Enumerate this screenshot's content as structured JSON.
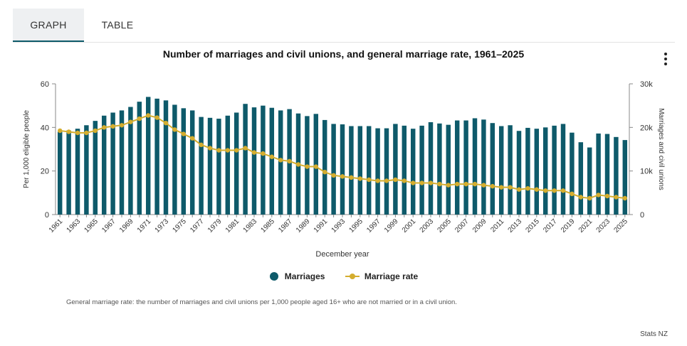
{
  "tabs": [
    {
      "label": "GRAPH",
      "active": true
    },
    {
      "label": "TABLE",
      "active": false
    }
  ],
  "colors": {
    "bar": "#0e5a6a",
    "line": "#d4ad2f",
    "axis": "#888888",
    "grid": "#cccccc"
  },
  "chart_data": {
    "type": "bar",
    "title": "Number of marriages and civil unions, and general marriage rate, 1961–2025",
    "xlabel": "December year",
    "ylabel_left": "Per 1,000 eligible people",
    "ylabel_right": "Marriages and civil unions",
    "ylim_left": [
      0,
      60
    ],
    "ylim_right": [
      0,
      30000
    ],
    "yticks_left": [
      "0",
      "20",
      "40",
      "60"
    ],
    "yticks_right": [
      "0",
      "10k",
      "20k",
      "30k"
    ],
    "xtick_labels": [
      "1961",
      "1963",
      "1965",
      "1967",
      "1969",
      "1971",
      "1973",
      "1975",
      "1977",
      "1979",
      "1981",
      "1983",
      "1985",
      "1987",
      "1989",
      "1991",
      "1993",
      "1995",
      "1997",
      "1999",
      "2001",
      "2003",
      "2005",
      "2007",
      "2009",
      "2011",
      "2013",
      "2015",
      "2017",
      "2019",
      "2021",
      "2023",
      "2025"
    ],
    "grid": false,
    "legend_position": "bottom",
    "categories": [
      1961,
      1962,
      1963,
      1964,
      1965,
      1966,
      1967,
      1968,
      1969,
      1970,
      1971,
      1972,
      1973,
      1974,
      1975,
      1976,
      1977,
      1978,
      1979,
      1980,
      1981,
      1982,
      1983,
      1984,
      1985,
      1986,
      1987,
      1988,
      1989,
      1990,
      1991,
      1992,
      1993,
      1994,
      1995,
      1996,
      1997,
      1998,
      1999,
      2000,
      2001,
      2002,
      2003,
      2004,
      2005,
      2006,
      2007,
      2008,
      2009,
      2010,
      2011,
      2012,
      2013,
      2014,
      2015,
      2016,
      2017,
      2018,
      2019,
      2020,
      2021,
      2022,
      2023,
      2024,
      2025
    ],
    "series": [
      {
        "name": "Marriages",
        "type": "bar",
        "axis": "right",
        "values": [
          19000,
          19300,
          19700,
          20500,
          21500,
          22700,
          23400,
          23900,
          24700,
          25900,
          27000,
          26600,
          26200,
          25200,
          24400,
          23900,
          22400,
          22200,
          22000,
          22700,
          23400,
          25400,
          24600,
          25000,
          24500,
          23900,
          24200,
          23200,
          22600,
          23100,
          21700,
          20800,
          20700,
          20300,
          20300,
          20300,
          19800,
          19800,
          20800,
          20400,
          19700,
          20400,
          21200,
          20900,
          20600,
          21600,
          21600,
          22100,
          21800,
          21000,
          20300,
          20500,
          19200,
          19900,
          19700,
          20000,
          20400,
          20800,
          18800,
          16600,
          15400,
          18600,
          18500,
          17800,
          17100
        ]
      },
      {
        "name": "Marriage rate",
        "type": "line",
        "axis": "left",
        "values": [
          38.5,
          38,
          37.5,
          37.5,
          38.5,
          40,
          40.5,
          41,
          42.5,
          44,
          45.5,
          44.5,
          42,
          39,
          37,
          35,
          32,
          30.5,
          29.5,
          29.5,
          29.5,
          30.5,
          28.5,
          28,
          26.5,
          25,
          24.5,
          23,
          22,
          22,
          19.5,
          18,
          17.5,
          17,
          16.5,
          16,
          15.5,
          15.5,
          16,
          15.5,
          14.5,
          14.5,
          14.5,
          14,
          13.5,
          14,
          14,
          14,
          13.5,
          13,
          12.5,
          12.5,
          11.5,
          12,
          11.5,
          11,
          11,
          11,
          9.5,
          8,
          7.5,
          9,
          8.5,
          8,
          7.5
        ]
      }
    ]
  },
  "legend": {
    "bar_label": "Marriages",
    "line_label": "Marriage rate"
  },
  "note": "General marriage rate: the number of marriages and civil unions per 1,000 people aged 16+ who are not married or in a civil union.",
  "source": "Stats NZ",
  "menu_icon": "vertical-ellipsis-icon"
}
